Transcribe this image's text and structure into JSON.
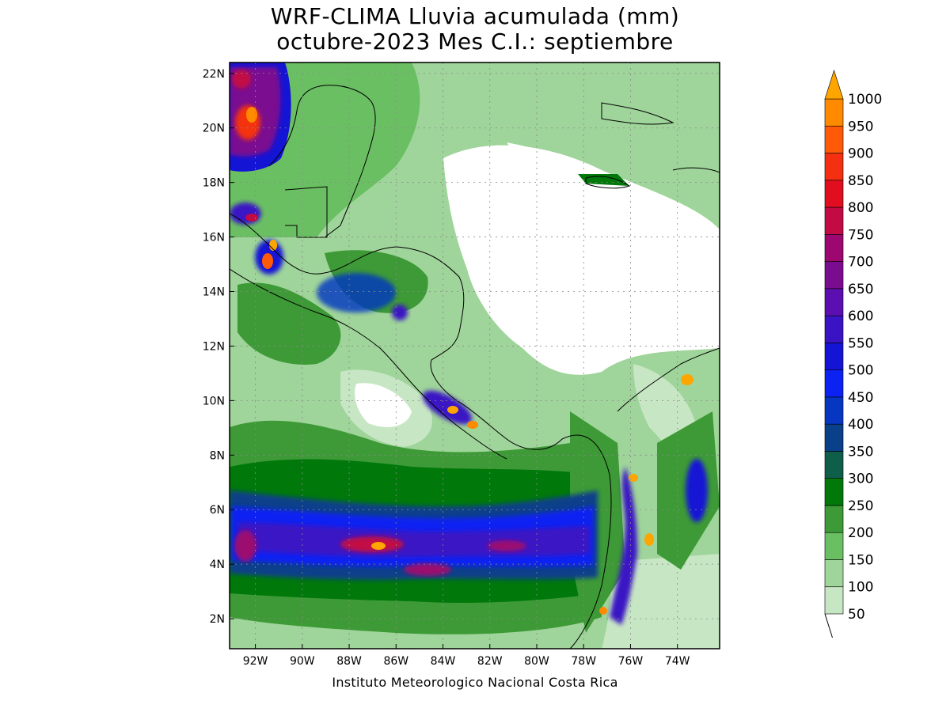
{
  "title": {
    "line1": "WRF-CLIMA Lluvia acumulada (mm)",
    "line2": "octubre-2023 Mes C.I.: septiembre"
  },
  "credit": "Instituto Meteorologico Nacional Costa Rica",
  "map": {
    "lon_range": [
      -93.1,
      -72.2
    ],
    "lat_range": [
      0.9,
      22.4
    ],
    "lon_ticks": [
      "92W",
      "90W",
      "88W",
      "86W",
      "84W",
      "82W",
      "80W",
      "78W",
      "76W",
      "74W"
    ],
    "lat_ticks": [
      "2N",
      "4N",
      "6N",
      "8N",
      "10N",
      "12N",
      "14N",
      "16N",
      "18N",
      "20N",
      "22N"
    ],
    "grid": "dotted"
  },
  "colorbar": {
    "levels": [
      "50",
      "100",
      "150",
      "200",
      "250",
      "300",
      "350",
      "400",
      "450",
      "500",
      "550",
      "600",
      "650",
      "700",
      "750",
      "800",
      "850",
      "900",
      "950",
      "1000"
    ],
    "colors": [
      "#c7e6c4",
      "#9fd49a",
      "#6bbf63",
      "#3d9a36",
      "#00780a",
      "#0e5e4a",
      "#0a3f8a",
      "#0636c2",
      "#0b22f2",
      "#1414d4",
      "#3a14c4",
      "#5c0fb0",
      "#7a0c90",
      "#9c0870",
      "#c20a45",
      "#e00e1e",
      "#f43010",
      "#ff5a08",
      "#ff8a00",
      "#ffa500"
    ]
  }
}
